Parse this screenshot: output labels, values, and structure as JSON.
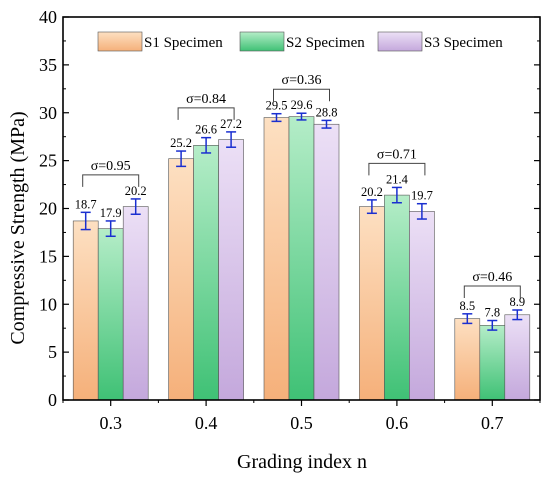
{
  "chart_data": {
    "type": "bar",
    "title": "",
    "xlabel": "Grading index n",
    "ylabel": "Compressive Strength (MPa)",
    "ylim": [
      0,
      40
    ],
    "yticks": [
      0,
      5,
      10,
      15,
      20,
      25,
      30,
      35,
      40
    ],
    "categories": [
      "0.3",
      "0.4",
      "0.5",
      "0.6",
      "0.7"
    ],
    "series": [
      {
        "name": "S1 Specimen",
        "values": [
          18.7,
          25.2,
          29.5,
          20.2,
          8.5
        ],
        "value_labels": [
          "18.7",
          "25.2",
          "29.5",
          "20.2",
          "8.5"
        ],
        "errors": [
          0.9,
          0.8,
          0.4,
          0.7,
          0.5
        ],
        "color_top": "#fde0c2",
        "color_bottom": "#f5b07a"
      },
      {
        "name": "S2 Specimen",
        "values": [
          17.9,
          26.6,
          29.6,
          21.4,
          7.8
        ],
        "value_labels": [
          "17.9",
          "26.6",
          "29.6",
          "21.4",
          "7.8"
        ],
        "errors": [
          0.8,
          0.8,
          0.35,
          0.8,
          0.5
        ],
        "color_top": "#b5edc8",
        "color_bottom": "#3fc175"
      },
      {
        "name": "S3 Specimen",
        "values": [
          20.2,
          27.2,
          28.8,
          19.7,
          8.9
        ],
        "value_labels": [
          "20.2",
          "27.2",
          "28.8",
          "19.7",
          "8.9"
        ],
        "errors": [
          0.8,
          0.8,
          0.4,
          0.8,
          0.5
        ],
        "color_top": "#ece0f6",
        "color_bottom": "#c4a8dc"
      }
    ],
    "sigma": [
      "σ=0.95",
      "σ=0.84",
      "σ=0.36",
      "σ=0.71",
      "σ=0.46"
    ],
    "error_bar_color": "#1a2fd0",
    "legend_position": "top",
    "grid": false
  }
}
